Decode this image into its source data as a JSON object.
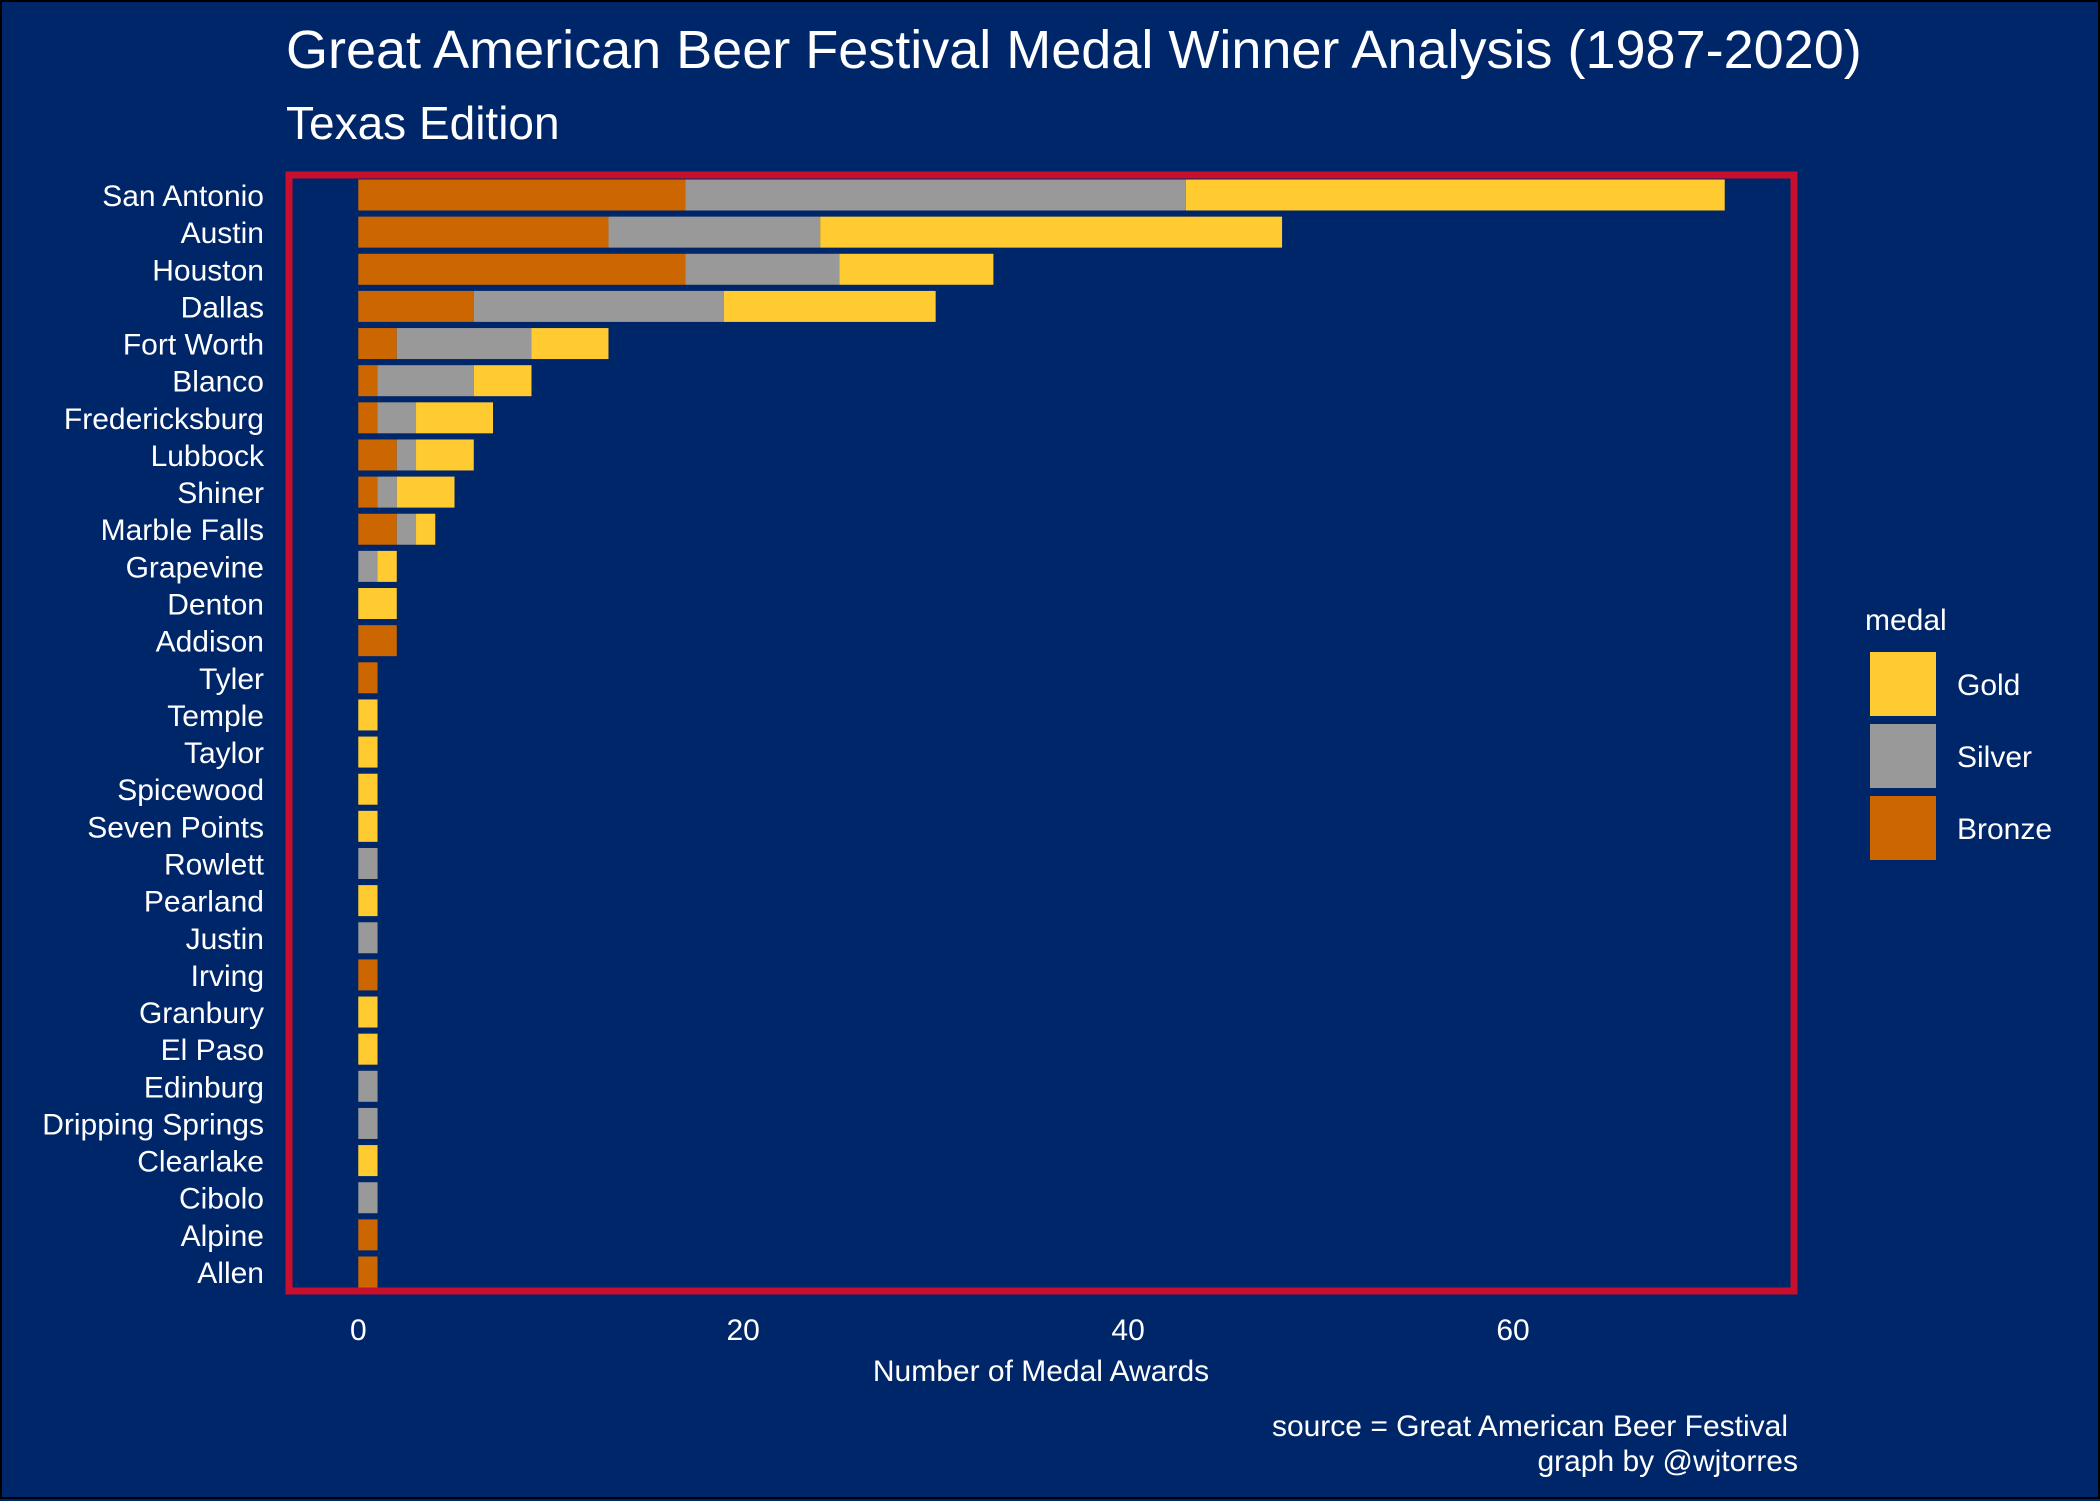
{
  "title": "Great American Beer Festival Medal Winner Analysis (1987-2020)",
  "subtitle": "Texas Edition",
  "caption": [
    "source = Great American Beer Festival",
    "graph by @wjtorres"
  ],
  "colors": {
    "background": "#00266a",
    "panel_border": "#c8102e",
    "gold": "#ffcb30",
    "silver": "#999999",
    "bronze": "#cc6600"
  },
  "legend": {
    "title": "medal",
    "items": [
      {
        "label": "Gold",
        "color": "#ffcb30"
      },
      {
        "label": "Silver",
        "color": "#999999"
      },
      {
        "label": "Bronze",
        "color": "#cc6600"
      }
    ]
  },
  "chart_data": {
    "type": "bar",
    "orientation": "horizontal",
    "stacked": true,
    "xlabel": "Number of Medal Awards",
    "ylabel": "",
    "xlim": [
      -3.6,
      74.6
    ],
    "xticks": [
      0,
      20,
      40,
      60
    ],
    "categories": [
      "San Antonio",
      "Austin",
      "Houston",
      "Dallas",
      "Fort Worth",
      "Blanco",
      "Fredericksburg",
      "Lubbock",
      "Shiner",
      "Marble Falls",
      "Grapevine",
      "Denton",
      "Addison",
      "Tyler",
      "Temple",
      "Taylor",
      "Spicewood",
      "Seven Points",
      "Rowlett",
      "Pearland",
      "Justin",
      "Irving",
      "Granbury",
      "El Paso",
      "Edinburg",
      "Dripping Springs",
      "Clearlake",
      "Cibolo",
      "Alpine",
      "Allen"
    ],
    "series": [
      {
        "name": "Bronze",
        "values": [
          17,
          13,
          17,
          6,
          2,
          1,
          1,
          2,
          1,
          2,
          0,
          0,
          2,
          1,
          0,
          0,
          0,
          0,
          0,
          0,
          0,
          1,
          0,
          0,
          0,
          0,
          0,
          0,
          1,
          1
        ]
      },
      {
        "name": "Silver",
        "values": [
          26,
          11,
          8,
          13,
          7,
          5,
          2,
          1,
          1,
          1,
          1,
          0,
          0,
          0,
          0,
          0,
          0,
          0,
          1,
          0,
          1,
          0,
          0,
          0,
          1,
          1,
          0,
          1,
          0,
          0
        ]
      },
      {
        "name": "Gold",
        "values": [
          28,
          24,
          8,
          11,
          4,
          3,
          4,
          3,
          3,
          1,
          1,
          2,
          0,
          0,
          1,
          1,
          1,
          1,
          0,
          1,
          0,
          0,
          1,
          1,
          0,
          0,
          1,
          0,
          0,
          0
        ]
      }
    ],
    "legend_position": "right",
    "grid": false
  }
}
